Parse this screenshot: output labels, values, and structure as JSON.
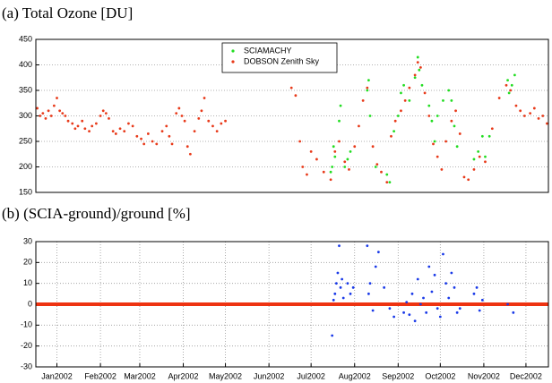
{
  "chart_data": [
    {
      "type": "scatter",
      "title": "(a) Total Ozone [DU]",
      "xlim": [
        0,
        365
      ],
      "ylim": [
        150,
        450
      ],
      "yticks": [
        150,
        200,
        250,
        300,
        350,
        400,
        450
      ],
      "grid": true,
      "legend": "top",
      "series": [
        {
          "name": "SCIAMACHY",
          "color": "#22dd22",
          "x": [
            210,
            211,
            212,
            213,
            216,
            217,
            220,
            222,
            224,
            236,
            237,
            238,
            242,
            250,
            252,
            255,
            258,
            260,
            262,
            266,
            270,
            272,
            273,
            275,
            280,
            282,
            284,
            286,
            290,
            294,
            296,
            298,
            300,
            312,
            315,
            318,
            320,
            323,
            336,
            337,
            339,
            341
          ],
          "values": [
            190,
            200,
            240,
            220,
            290,
            320,
            200,
            215,
            230,
            350,
            370,
            300,
            200,
            185,
            170,
            270,
            300,
            345,
            360,
            330,
            375,
            415,
            390,
            360,
            320,
            290,
            250,
            300,
            330,
            350,
            330,
            280,
            240,
            215,
            230,
            260,
            220,
            260,
            370,
            345,
            360,
            380
          ]
        },
        {
          "name": "DOBSON Zenith Sky",
          "color": "#e83a1a",
          "x": [
            1,
            3,
            5,
            7,
            9,
            11,
            13,
            15,
            17,
            19,
            21,
            23,
            26,
            28,
            30,
            33,
            35,
            38,
            40,
            43,
            46,
            48,
            50,
            52,
            55,
            57,
            60,
            63,
            66,
            69,
            72,
            75,
            77,
            80,
            83,
            86,
            90,
            93,
            95,
            97,
            100,
            102,
            104,
            106,
            108,
            110,
            113,
            116,
            118,
            120,
            123,
            126,
            129,
            132,
            135,
            182,
            185,
            188,
            190,
            193,
            196,
            200,
            205,
            210,
            213,
            216,
            220,
            223,
            227,
            230,
            233,
            236,
            240,
            243,
            246,
            250,
            253,
            256,
            260,
            263,
            266,
            270,
            272,
            274,
            277,
            280,
            283,
            286,
            289,
            292,
            296,
            299,
            302,
            305,
            308,
            312,
            316,
            320,
            325,
            330,
            335,
            338,
            342,
            345,
            348,
            352,
            355,
            358,
            361,
            364
          ],
          "values": [
            315,
            300,
            305,
            295,
            310,
            300,
            320,
            335,
            310,
            305,
            300,
            290,
            285,
            275,
            280,
            290,
            275,
            270,
            280,
            285,
            300,
            310,
            305,
            295,
            270,
            265,
            275,
            270,
            285,
            280,
            260,
            255,
            245,
            265,
            250,
            245,
            270,
            280,
            260,
            245,
            305,
            315,
            300,
            290,
            240,
            225,
            270,
            295,
            310,
            335,
            290,
            280,
            270,
            285,
            290,
            355,
            340,
            250,
            200,
            185,
            230,
            215,
            190,
            175,
            230,
            250,
            210,
            195,
            240,
            280,
            330,
            355,
            240,
            205,
            190,
            170,
            260,
            290,
            310,
            330,
            355,
            380,
            405,
            395,
            345,
            300,
            245,
            220,
            195,
            250,
            290,
            310,
            265,
            180,
            175,
            195,
            220,
            210,
            275,
            335,
            360,
            350,
            320,
            310,
            300,
            305,
            315,
            295,
            300,
            285
          ]
        }
      ]
    },
    {
      "type": "scatter",
      "title": "(b) (SCIA-ground)/ground [%]",
      "xlim": [
        0,
        365
      ],
      "ylim": [
        -30,
        30
      ],
      "yticks": [
        -30,
        -20,
        -10,
        0,
        10,
        20,
        30
      ],
      "grid": true,
      "hline": {
        "value": 0,
        "color": "#ee3311"
      },
      "xticks": [
        {
          "value": 15,
          "label": "Jan2002"
        },
        {
          "value": 46,
          "label": "Feb2002"
        },
        {
          "value": 74,
          "label": "Mar2002"
        },
        {
          "value": 105,
          "label": "Apr2002"
        },
        {
          "value": 135,
          "label": "May2002"
        },
        {
          "value": 166,
          "label": "Jun2002"
        },
        {
          "value": 196,
          "label": "Jul2002"
        },
        {
          "value": 227,
          "label": "Aug2002"
        },
        {
          "value": 258,
          "label": "Sep2002"
        },
        {
          "value": 288,
          "label": "Oct2002"
        },
        {
          "value": 319,
          "label": "Nov2002"
        },
        {
          "value": 349,
          "label": "Dec2002"
        }
      ],
      "series": [
        {
          "name": null,
          "color": "#1a3ae8",
          "x": [
            211,
            212,
            213,
            214,
            215,
            216,
            217,
            218,
            219,
            222,
            224,
            226,
            236,
            237,
            238,
            240,
            242,
            244,
            248,
            252,
            255,
            262,
            264,
            266,
            268,
            270,
            272,
            274,
            276,
            278,
            280,
            282,
            284,
            286,
            288,
            290,
            292,
            294,
            296,
            298,
            300,
            302,
            312,
            314,
            316,
            318,
            336,
            340
          ],
          "values": [
            -15,
            2,
            5,
            10,
            15,
            28,
            8,
            12,
            3,
            10,
            5,
            8,
            28,
            5,
            10,
            -3,
            18,
            25,
            8,
            -2,
            -6,
            -4,
            1,
            -5,
            5,
            -8,
            12,
            0,
            3,
            -4,
            18,
            6,
            14,
            -2,
            -6,
            24,
            10,
            3,
            15,
            8,
            -4,
            -2,
            5,
            8,
            -3,
            2,
            0,
            -4
          ]
        }
      ]
    }
  ]
}
